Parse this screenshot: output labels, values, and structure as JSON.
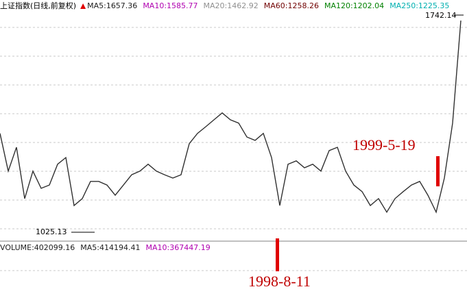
{
  "chart_data": {
    "type": "line",
    "title": "上证指数(日线,前复权)",
    "legend_items": [
      {
        "label": "MA5:1657.36",
        "color": "#202020"
      },
      {
        "label": "MA10:1585.77",
        "color": "#b000b0"
      },
      {
        "label": "MA20:1462.92",
        "color": "#909090"
      },
      {
        "label": "MA60:1258.26",
        "color": "#700000"
      },
      {
        "label": "MA120:1202.04",
        "color": "#008000"
      },
      {
        "label": "MA250:1225.35",
        "color": "#00b0b0"
      }
    ],
    "volume_legend": [
      {
        "label": "VOLUME:402099.16",
        "color": "#202020"
      },
      {
        "label": "MA5:414194.41",
        "color": "#202020"
      },
      {
        "label": "MA10:367447.19",
        "color": "#b000b0"
      }
    ],
    "high_label": "1742.14",
    "low_label": "1025.13",
    "annotations": [
      "1999-5-19",
      "1998-8-11"
    ],
    "ylim": [
      993,
      1792
    ],
    "series": [
      {
        "name": "上证指数",
        "color": "#303030",
        "values": [
          1350,
          1225,
          1304,
          1134,
          1225,
          1168,
          1179,
          1248,
          1270,
          1111,
          1134,
          1191,
          1191,
          1179,
          1145,
          1179,
          1213,
          1225,
          1248,
          1225,
          1213,
          1202,
          1213,
          1316,
          1350,
          1372,
          1395,
          1418,
          1395,
          1384,
          1338,
          1327,
          1350,
          1270,
          1111,
          1248,
          1259,
          1236,
          1248,
          1225,
          1293,
          1304,
          1225,
          1179,
          1157,
          1111,
          1134,
          1089,
          1134,
          1157,
          1179,
          1191,
          1145,
          1089,
          1202,
          1384,
          1724
        ]
      }
    ]
  }
}
